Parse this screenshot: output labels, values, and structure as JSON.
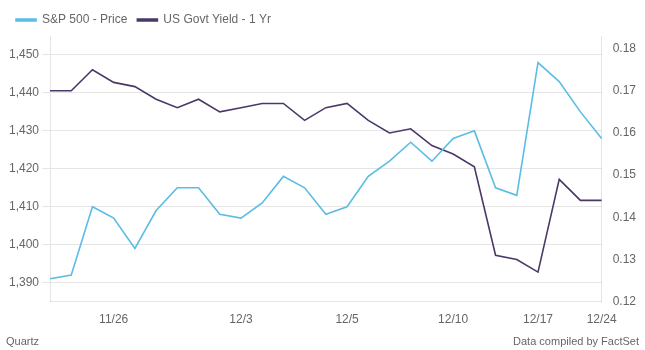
{
  "chart_data": {
    "type": "line",
    "categories": [
      null,
      null,
      null,
      "11/26",
      null,
      null,
      null,
      null,
      null,
      "12/3",
      null,
      null,
      null,
      null,
      "12/5",
      null,
      null,
      null,
      null,
      "12/10",
      null,
      null,
      null,
      "12/17",
      null,
      null,
      "12/24"
    ],
    "series": [
      {
        "name": "S&P 500 - Price",
        "color": "#5bbde4",
        "values": [
          1391,
          1392,
          1410,
          1407,
          1399,
          1409,
          1415,
          1415,
          1408,
          1407,
          1411,
          1418,
          1415,
          1408,
          1410,
          1418,
          1422,
          1427,
          1422,
          1428,
          1430,
          1415,
          1413,
          1448,
          1443,
          1435,
          1428
        ]
      },
      {
        "name": "US Govt Yield - 1 Yr",
        "color": "#4a3868",
        "axis": "y2",
        "values": [
          0.17,
          0.17,
          0.175,
          0.172,
          0.171,
          0.168,
          0.166,
          0.168,
          0.165,
          0.166,
          0.167,
          0.167,
          0.163,
          0.166,
          0.167,
          0.163,
          0.16,
          0.161,
          0.157,
          0.155,
          0.152,
          0.131,
          0.13,
          0.127,
          0.149,
          0.144,
          0.144
        ]
      }
    ],
    "ylim": [
      1385,
      1455
    ],
    "yticks": [
      {
        "value": 1390,
        "label": "1,390"
      },
      {
        "value": 1400,
        "label": "1,400"
      },
      {
        "value": 1410,
        "label": "1,410"
      },
      {
        "value": 1420,
        "label": "1,420"
      },
      {
        "value": 1430,
        "label": "1,430"
      },
      {
        "value": 1440,
        "label": "1,440"
      },
      {
        "value": 1450,
        "label": "1,450"
      }
    ],
    "y2lim": [
      0.12,
      0.183
    ],
    "y2ticks": [
      0.12,
      0.13,
      0.14,
      0.15,
      0.16,
      0.17,
      0.18
    ],
    "grid": true,
    "legend": "upper left",
    "annotations": [
      "Quartz",
      "Data compiled by FactSet"
    ]
  }
}
